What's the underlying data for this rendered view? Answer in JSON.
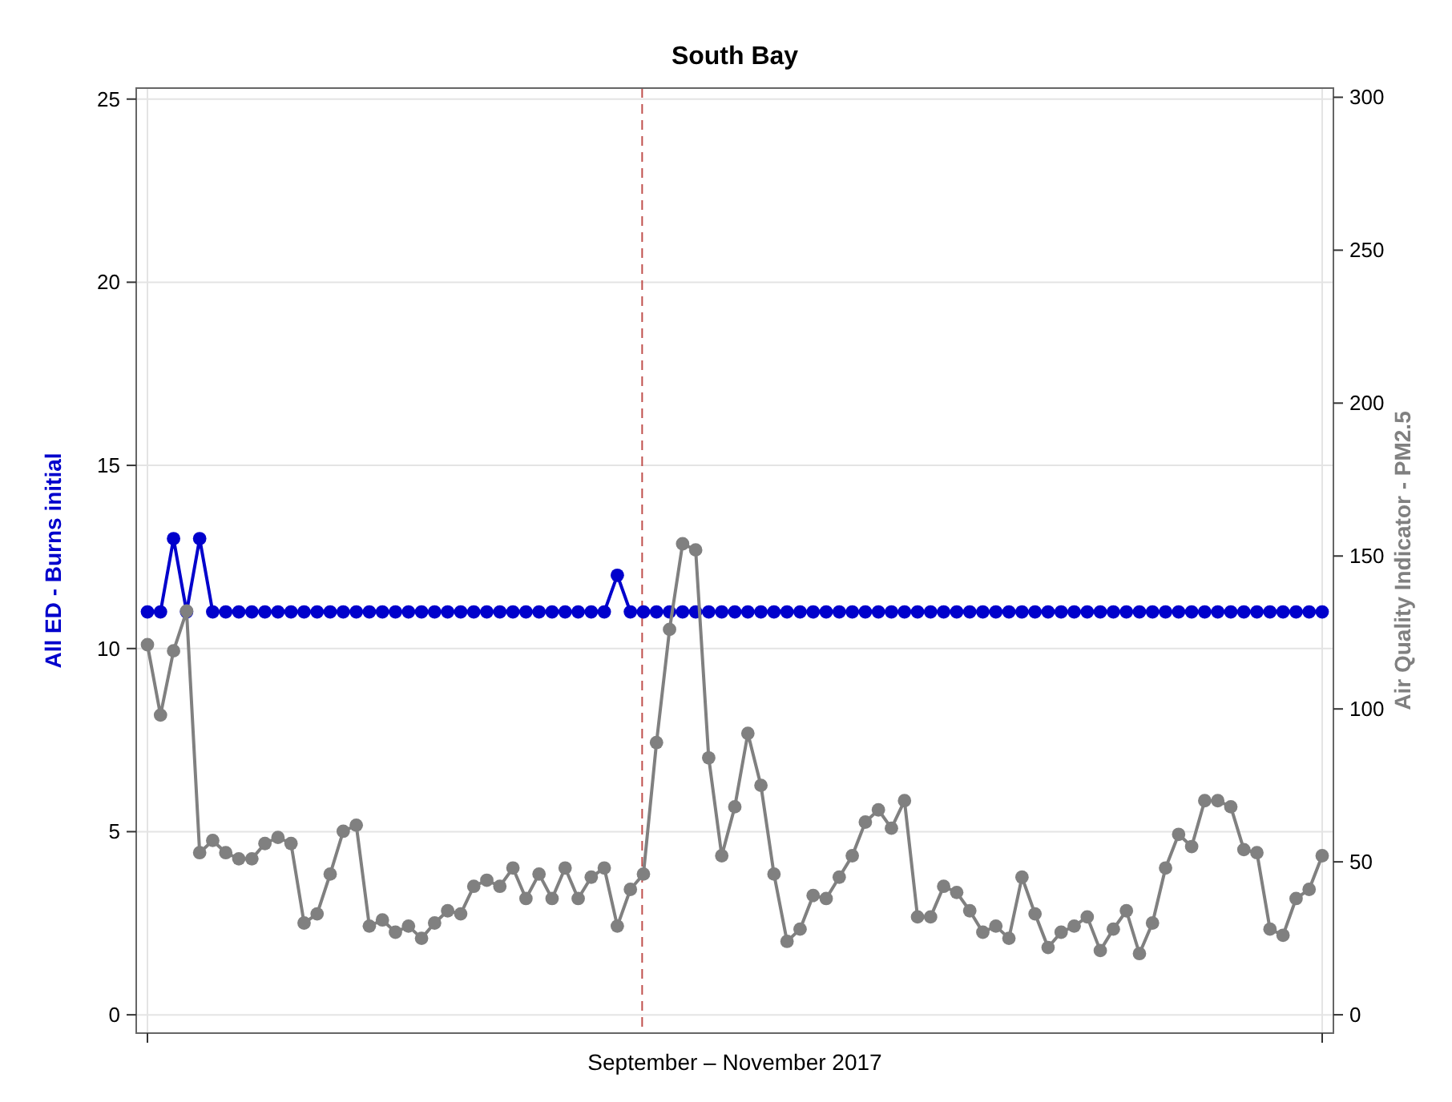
{
  "chart_data": {
    "type": "line",
    "title": "South Bay",
    "xlabel": "September – November 2017",
    "ylabel": "All ED - Burns initial",
    "y2label": "Air Quality Indicator - PM2.5",
    "categories": [
      null,
      null,
      null,
      null,
      null,
      null,
      null,
      null,
      null,
      null,
      null,
      null,
      null,
      null,
      null,
      null,
      null,
      null,
      null,
      null,
      null,
      null,
      null,
      null,
      null,
      null,
      null,
      null,
      null,
      null,
      null,
      null,
      null,
      null,
      null,
      null,
      null,
      null,
      null,
      null,
      null,
      null,
      null,
      null,
      null,
      null,
      null,
      null,
      null,
      null,
      null,
      null,
      null,
      null,
      null,
      null,
      null,
      null,
      null,
      null,
      null,
      null,
      null,
      null,
      null,
      null,
      null,
      null,
      null,
      null,
      null,
      null,
      null,
      null,
      null,
      null,
      null,
      null,
      null,
      null,
      null,
      null,
      null,
      null,
      null,
      null,
      null,
      null,
      null,
      null,
      null
    ],
    "ylim": [
      -0.5,
      25.3
    ],
    "yticks": [
      0,
      5,
      10,
      15,
      20,
      25
    ],
    "y2lim": [
      -6,
      303
    ],
    "y2ticks": [
      0,
      50,
      100,
      150,
      200,
      250,
      300
    ],
    "grid": true,
    "marker": "circle",
    "line_style": "solid",
    "series": [
      {
        "color": "#0000cc",
        "values": [
          11,
          11,
          13,
          11,
          13,
          11,
          11,
          11,
          11,
          11,
          11,
          11,
          11,
          11,
          11,
          11,
          11,
          11,
          11,
          11,
          11,
          11,
          11,
          11,
          11,
          11,
          11,
          11,
          11,
          11,
          11,
          11,
          11,
          11,
          11,
          11,
          12,
          11,
          11,
          11,
          11,
          11,
          11,
          11,
          11,
          11,
          11,
          11,
          11,
          11,
          11,
          11,
          11,
          11,
          11,
          11,
          11,
          11,
          11,
          11,
          11,
          11,
          11,
          11,
          11,
          11,
          11,
          11,
          11,
          11,
          11,
          11,
          11,
          11,
          11,
          11,
          11,
          11,
          11,
          11,
          11,
          11,
          11,
          11,
          11,
          11,
          11,
          11,
          11,
          11,
          11
        ]
      },
      {
        "color": "#808080",
        "axis": "y2",
        "values": [
          121,
          98,
          119,
          132,
          53,
          57,
          53,
          51,
          51,
          56,
          58,
          56,
          30,
          33,
          46,
          60,
          62,
          29,
          31,
          27,
          29,
          25,
          30,
          34,
          33,
          42,
          44,
          42,
          48,
          38,
          46,
          38,
          48,
          38,
          45,
          48,
          29,
          41,
          46,
          89,
          126,
          154,
          152,
          84,
          52,
          68,
          92,
          75,
          46,
          24,
          28,
          39,
          38,
          45,
          52,
          63,
          67,
          61,
          70,
          32,
          32,
          42,
          40,
          34,
          27,
          29,
          25,
          45,
          33,
          22,
          27,
          29,
          32,
          21,
          28,
          34,
          20,
          30,
          48,
          59,
          55,
          70,
          70,
          68,
          54,
          53,
          28,
          26,
          38,
          41,
          52
        ]
      }
    ]
  }
}
